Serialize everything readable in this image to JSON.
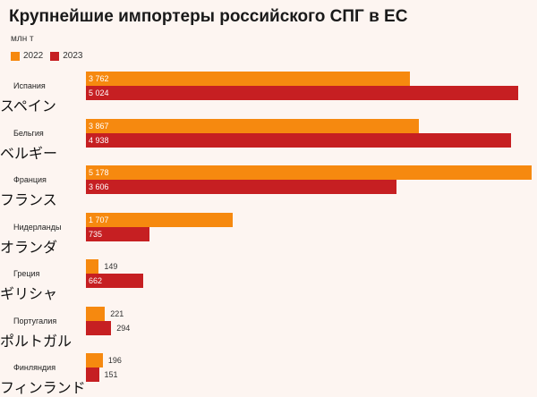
{
  "chart_data": {
    "type": "bar",
    "orientation": "horizontal",
    "title": "Крупнейшие импортеры российского СПГ в ЕС",
    "unit": "млн т",
    "categories": [
      "Испания",
      "Бельгия",
      "Франция",
      "Нидерланды",
      "Греция",
      "Португалия",
      "Финляндия"
    ],
    "category_annotations": [
      "スペイン",
      "ベルギー",
      "フランス",
      "オランダ",
      "ギリシャ",
      "ポルトガル",
      "フィンランド"
    ],
    "series": [
      {
        "name": "2022",
        "color": "#f6890f",
        "values": [
          3762,
          3867,
          5178,
          1707,
          149,
          221,
          196
        ],
        "labels": [
          "3 762",
          "3 867",
          "5 178",
          "1 707",
          "149",
          "221",
          "196"
        ]
      },
      {
        "name": "2023",
        "color": "#c61f22",
        "values": [
          5024,
          4938,
          3606,
          735,
          662,
          294,
          151
        ],
        "labels": [
          "5 024",
          "4 938",
          "3 606",
          "735",
          "662",
          "294",
          "151"
        ]
      }
    ],
    "xlim": [
      0,
      5178
    ],
    "legend": "top-left"
  }
}
